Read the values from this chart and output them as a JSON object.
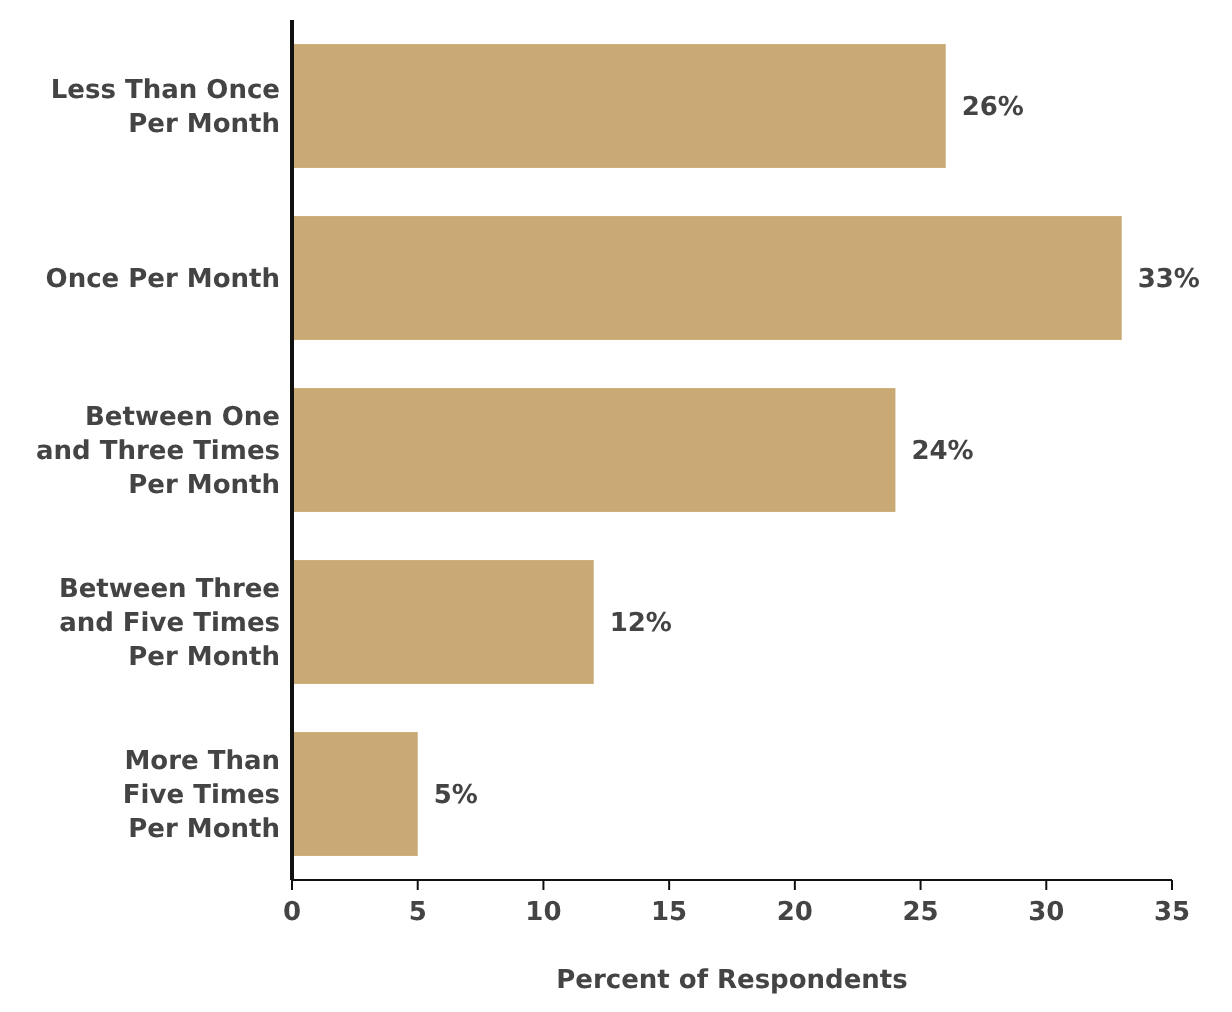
{
  "chart_data": {
    "type": "bar",
    "orientation": "horizontal",
    "xlabel": "Percent of Respondents",
    "categories": [
      "Less Than Once\nPer Month",
      "Once Per Month",
      "Between One\nand Three Times\nPer Month",
      "Between Three\nand Five Times\nPer Month",
      "More Than\nFive Times\nPer Month"
    ],
    "values": [
      26,
      33,
      24,
      12,
      5
    ],
    "color": "#c9aa74",
    "value_labels": [
      "26%",
      "33%",
      "24%",
      "12%",
      "5%"
    ],
    "xlim": [
      0,
      35
    ],
    "xticks": [
      0,
      5,
      10,
      15,
      20,
      25,
      30,
      35
    ],
    "grid": false
  }
}
